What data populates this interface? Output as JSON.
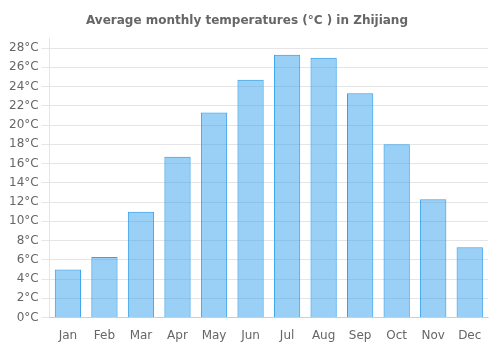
{
  "chart_data": {
    "type": "bar",
    "title": "Average monthly temperatures (°C ) in Zhijiang",
    "categories": [
      "Jan",
      "Feb",
      "Mar",
      "Apr",
      "May",
      "Jun",
      "Jul",
      "Aug",
      "Sep",
      "Oct",
      "Nov",
      "Dec"
    ],
    "values": [
      5.0,
      6.3,
      11.0,
      16.7,
      21.3,
      24.7,
      27.3,
      27.0,
      23.3,
      18.0,
      12.3,
      7.3
    ],
    "ylim": [
      0,
      29
    ],
    "yticks": [
      {
        "value": 0,
        "label": "0°C"
      },
      {
        "value": 2,
        "label": "2°C"
      },
      {
        "value": 4,
        "label": "4°C"
      },
      {
        "value": 6,
        "label": "6°C"
      },
      {
        "value": 8,
        "label": "8°C"
      },
      {
        "value": 10,
        "label": "10°C"
      },
      {
        "value": 12,
        "label": "12°C"
      },
      {
        "value": 14,
        "label": "14°C"
      },
      {
        "value": 16,
        "label": "16°C"
      },
      {
        "value": 18,
        "label": "18°C"
      },
      {
        "value": 20,
        "label": "20°C"
      },
      {
        "value": 22,
        "label": "22°C"
      },
      {
        "value": 24,
        "label": "24°C"
      },
      {
        "value": 26,
        "label": "26°C"
      },
      {
        "value": 28,
        "label": "28°C"
      }
    ],
    "grid": true
  }
}
